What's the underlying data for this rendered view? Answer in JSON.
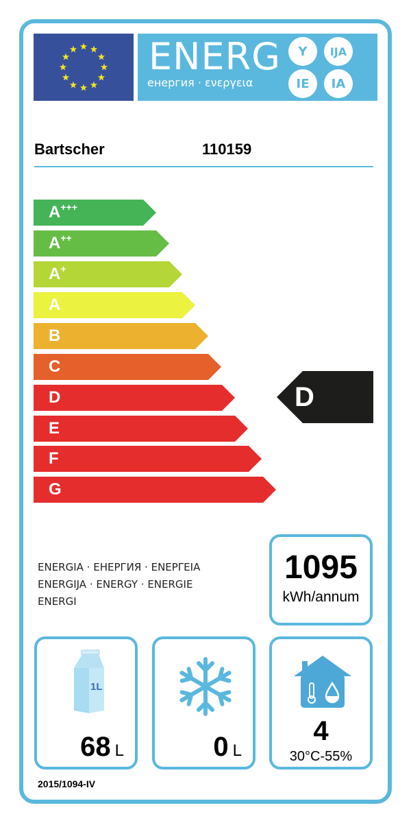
{
  "header": {
    "logo_text": "ENERG",
    "logo_subtitle": "енергия · ενεργεια",
    "suffixes": [
      "Y",
      "IJA",
      "IE",
      "IA"
    ]
  },
  "product": {
    "brand": "Bartscher",
    "model": "110159"
  },
  "scale": [
    {
      "letter": "A",
      "sup": "+++",
      "color": "#44b457"
    },
    {
      "letter": "A",
      "sup": "++",
      "color": "#66bd46"
    },
    {
      "letter": "A",
      "sup": "+",
      "color": "#b4d637"
    },
    {
      "letter": "A",
      "sup": "",
      "color": "#ebf23f"
    },
    {
      "letter": "B",
      "sup": "",
      "color": "#ecb22f"
    },
    {
      "letter": "C",
      "sup": "",
      "color": "#e5602b"
    },
    {
      "letter": "D",
      "sup": "",
      "color": "#e52d2d"
    },
    {
      "letter": "E",
      "sup": "",
      "color": "#e52d2d"
    },
    {
      "letter": "F",
      "sup": "",
      "color": "#e52d2d"
    },
    {
      "letter": "G",
      "sup": "",
      "color": "#e52d2d"
    }
  ],
  "rating": {
    "class": "D",
    "color": "#1d1d1b"
  },
  "energy": {
    "languages": [
      "ENERGIA · ЕНЕРГИЯ · ΕΝΕΡΓΕΙΑ",
      "ENERGIJA · ENERGY · ENERGIE",
      "ENERGI"
    ],
    "value": "1095",
    "unit": "kWh/annum"
  },
  "chill": {
    "icon": "milk-carton-icon",
    "carton_label": "1L",
    "value": "68",
    "unit": "L"
  },
  "frozen": {
    "icon": "snowflake-icon",
    "value": "0",
    "unit": "L"
  },
  "climate": {
    "icon": "house-thermometer-drop-icon",
    "class": "4",
    "range": "30°C-55%"
  },
  "regulation": "2015/1094-IV",
  "colors": {
    "accent": "#5ab8de",
    "eu_blue": "#36509c",
    "eu_star": "#f5e51d"
  }
}
